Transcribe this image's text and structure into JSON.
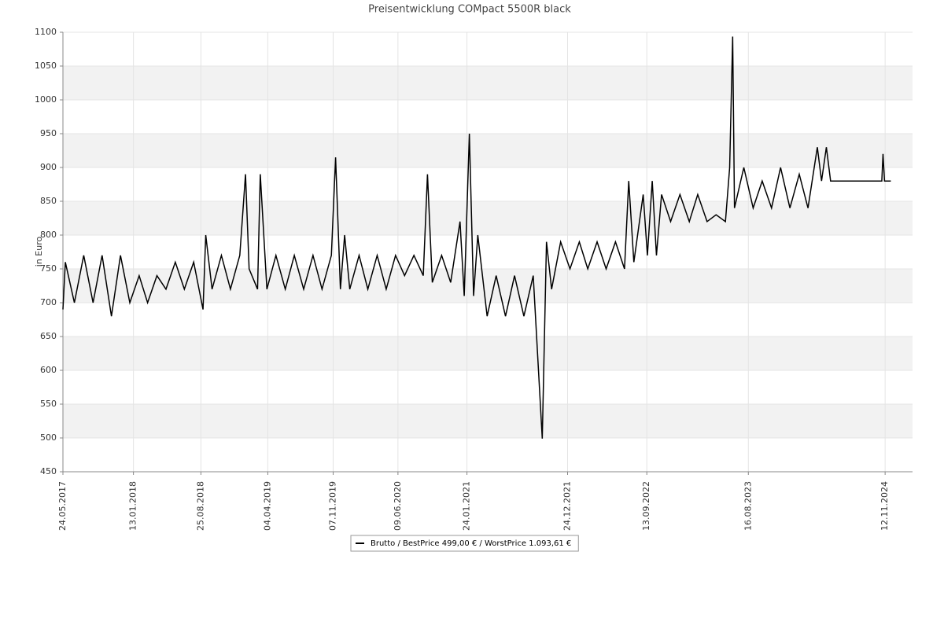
{
  "chart_data": {
    "type": "line",
    "title": "Preisentwicklung COMpact 5500R black",
    "y_label": "in Euro",
    "series": [
      {
        "name": "Brutto / BestPrice  499,00 € / WorstPrice  1.093,61 €",
        "color": "#000000",
        "x": [
          "24.05.2017",
          "01.06.2017",
          "01.07.2017",
          "01.08.2017",
          "01.09.2017",
          "01.10.2017",
          "01.11.2017",
          "01.12.2017",
          "01.01.2018",
          "01.02.2018",
          "01.03.2018",
          "01.04.2018",
          "01.05.2018",
          "01.06.2018",
          "01.07.2018",
          "01.08.2018",
          "01.09.2018",
          "10.09.2018",
          "01.10.2018",
          "01.11.2018",
          "01.12.2018",
          "01.01.2019",
          "20.01.2019",
          "01.02.2019",
          "01.03.2019",
          "10.03.2019",
          "01.04.2019",
          "01.05.2019",
          "01.06.2019",
          "01.07.2019",
          "01.08.2019",
          "01.09.2019",
          "01.10.2019",
          "01.11.2019",
          "15.11.2019",
          "01.12.2019",
          "15.12.2019",
          "01.01.2020",
          "01.02.2020",
          "01.03.2020",
          "01.04.2020",
          "01.05.2020",
          "01.06.2020",
          "01.07.2020",
          "01.08.2020",
          "01.09.2020",
          "15.09.2020",
          "01.10.2020",
          "01.11.2020",
          "01.12.2020",
          "01.01.2021",
          "15.01.2021",
          "01.02.2021",
          "15.02.2021",
          "01.03.2021",
          "01.04.2021",
          "01.05.2021",
          "01.06.2021",
          "01.07.2021",
          "01.08.2021",
          "01.09.2021",
          "01.10.2021",
          "15.10.2021",
          "01.11.2021",
          "01.12.2021",
          "01.01.2022",
          "01.02.2022",
          "01.03.2022",
          "01.04.2022",
          "01.05.2022",
          "01.06.2022",
          "01.07.2022",
          "15.07.2022",
          "01.08.2022",
          "01.09.2022",
          "15.09.2022",
          "01.10.2022",
          "15.10.2022",
          "01.11.2022",
          "01.12.2022",
          "01.01.2023",
          "01.02.2023",
          "01.03.2023",
          "01.04.2023",
          "01.05.2023",
          "01.06.2023",
          "15.06.2023",
          "25.06.2023",
          "01.07.2023",
          "01.08.2023",
          "01.09.2023",
          "01.10.2023",
          "01.11.2023",
          "01.12.2023",
          "01.01.2024",
          "01.02.2024",
          "01.03.2024",
          "01.04.2024",
          "15.04.2024",
          "01.05.2024",
          "15.05.2024",
          "01.09.2024",
          "01.11.2024",
          "05.11.2024",
          "10.11.2024",
          "01.12.2024"
        ],
        "values": [
          690,
          760,
          700,
          770,
          700,
          770,
          680,
          770,
          700,
          740,
          700,
          740,
          720,
          760,
          720,
          760,
          690,
          800,
          720,
          770,
          720,
          770,
          890,
          750,
          720,
          890,
          720,
          770,
          720,
          770,
          720,
          770,
          720,
          770,
          915,
          720,
          800,
          720,
          770,
          720,
          770,
          720,
          770,
          740,
          770,
          740,
          890,
          730,
          770,
          730,
          820,
          710,
          950,
          710,
          800,
          680,
          740,
          680,
          740,
          680,
          740,
          499,
          790,
          720,
          790,
          750,
          790,
          750,
          790,
          750,
          790,
          750,
          880,
          760,
          860,
          770,
          880,
          770,
          860,
          820,
          860,
          820,
          860,
          820,
          830,
          820,
          900,
          1093.61,
          840,
          900,
          840,
          880,
          840,
          900,
          840,
          890,
          840,
          930,
          880,
          930,
          880,
          880,
          880,
          920,
          880,
          880
        ]
      }
    ],
    "xlim": [
      "24.05.2017",
      "11.02.2025"
    ],
    "xticks": [
      "24.05.2017",
      "13.01.2018",
      "25.08.2018",
      "04.04.2019",
      "07.11.2019",
      "09.06.2020",
      "24.01.2021",
      "24.12.2021",
      "13.09.2022",
      "16.08.2023",
      "12.11.2024"
    ],
    "ylim": [
      450,
      1100
    ],
    "yticks": [
      450,
      500,
      550,
      600,
      650,
      700,
      750,
      800,
      850,
      900,
      950,
      1000,
      1050,
      1100
    ],
    "grid": true,
    "legend": "bottom"
  }
}
